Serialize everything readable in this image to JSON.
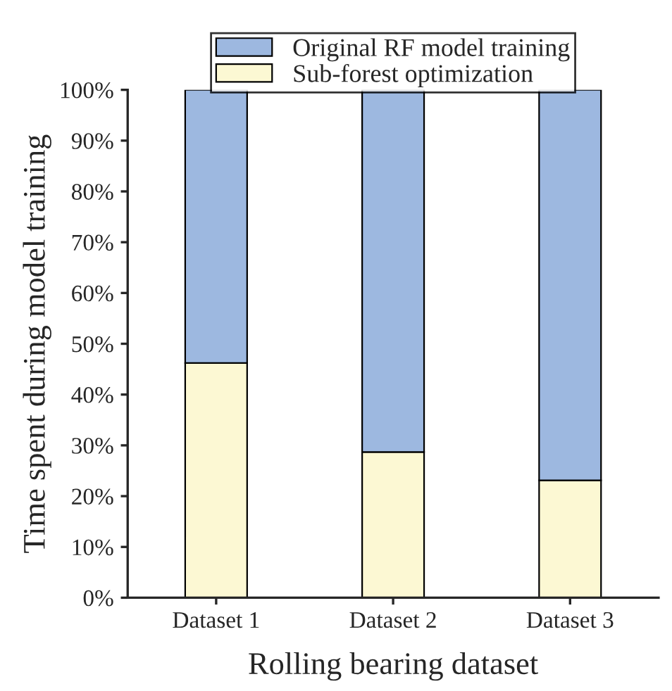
{
  "chart_data": {
    "type": "bar",
    "stacked": true,
    "xlabel": "Rolling bearing dataset",
    "ylabel": "Time spent during model training",
    "categories": [
      "Dataset 1",
      "Dataset 2",
      "Dataset 3"
    ],
    "series": [
      {
        "name": "Sub-forest optimization",
        "color": "#fcf8d3",
        "values": [
          46.2,
          28.7,
          23.1
        ]
      },
      {
        "name": "Original RF model training",
        "color": "#9db8e0",
        "values": [
          53.8,
          71.3,
          76.9
        ]
      }
    ],
    "ylim": [
      0,
      100
    ],
    "yticks": [
      {
        "value": 0,
        "label": "0%"
      },
      {
        "value": 10,
        "label": "10%"
      },
      {
        "value": 20,
        "label": "20%"
      },
      {
        "value": 30,
        "label": "30%"
      },
      {
        "value": 40,
        "label": "40%"
      },
      {
        "value": 50,
        "label": "50%"
      },
      {
        "value": 60,
        "label": "60%"
      },
      {
        "value": 70,
        "label": "70%"
      },
      {
        "value": 80,
        "label": "80%"
      },
      {
        "value": 90,
        "label": "90%"
      },
      {
        "value": 100,
        "label": "100%"
      }
    ],
    "grid": false,
    "legend": "top"
  }
}
